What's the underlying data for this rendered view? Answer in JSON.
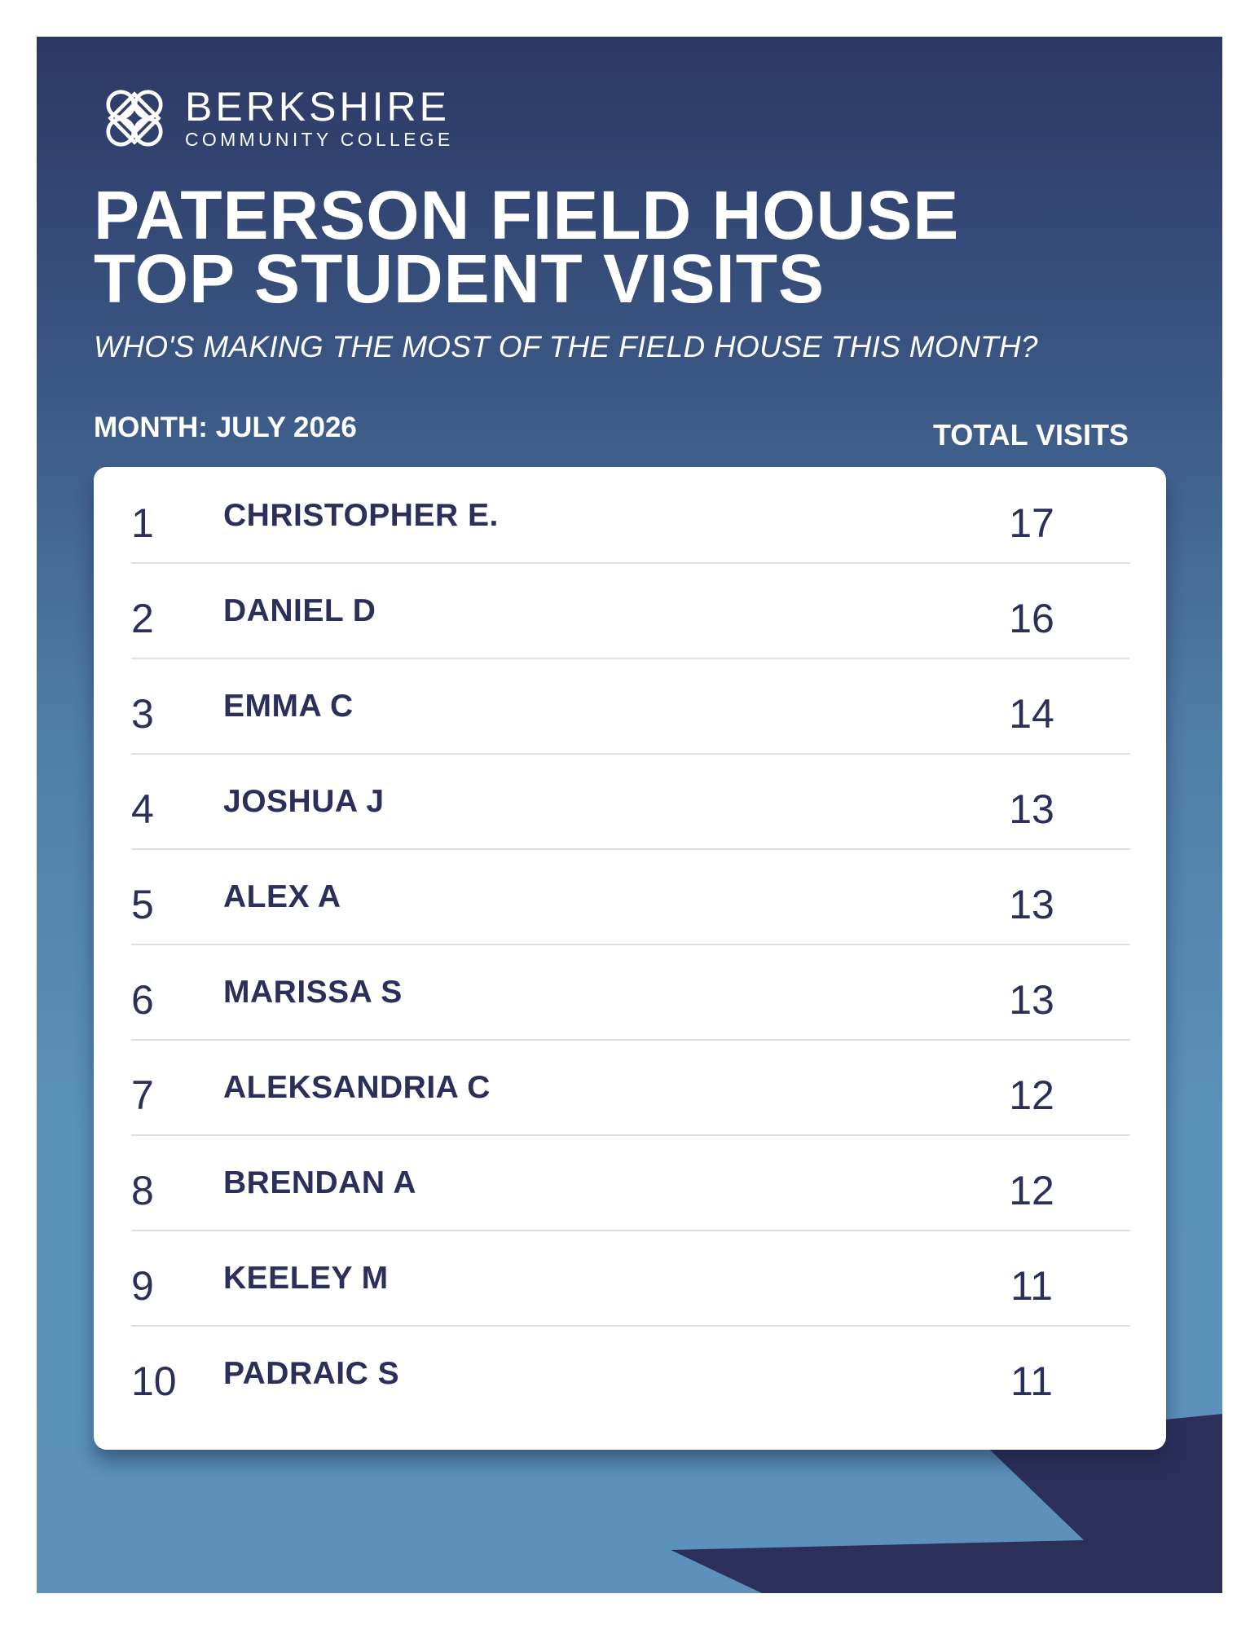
{
  "logo": {
    "name": "BERKSHIRE",
    "subname": "COMMUNITY COLLEGE",
    "icon": "interlaced-knot-icon"
  },
  "title": {
    "line1": "PATERSON FIELD HOUSE",
    "line2": "TOP STUDENT VISITS"
  },
  "subtitle": "WHO'S MAKING THE MOST OF THE FIELD HOUSE THIS MONTH?",
  "month_label": "MONTH: JULY 2026",
  "total_header": "TOTAL VISITS",
  "rows": [
    {
      "rank": "1",
      "name": "CHRISTOPHER E.",
      "visits": "17"
    },
    {
      "rank": "2",
      "name": "DANIEL D",
      "visits": "16"
    },
    {
      "rank": "3",
      "name": "EMMA C",
      "visits": "14"
    },
    {
      "rank": "4",
      "name": "JOSHUA J",
      "visits": "13"
    },
    {
      "rank": "5",
      "name": "ALEX A",
      "visits": "13"
    },
    {
      "rank": "6",
      "name": "MARISSA S",
      "visits": "13"
    },
    {
      "rank": "7",
      "name": "ALEKSANDRIA C",
      "visits": "12"
    },
    {
      "rank": "8",
      "name": "BRENDAN A",
      "visits": "12"
    },
    {
      "rank": "9",
      "name": "KEELEY M",
      "visits": "11"
    },
    {
      "rank": "10",
      "name": "PADRAIC S",
      "visits": "11"
    }
  ],
  "colors": {
    "background_top": "#2c3764",
    "background_bottom": "#5b91ba",
    "accent_shape": "#2b2f5a",
    "text_dark": "#2b2f5a",
    "card": "#ffffff"
  }
}
